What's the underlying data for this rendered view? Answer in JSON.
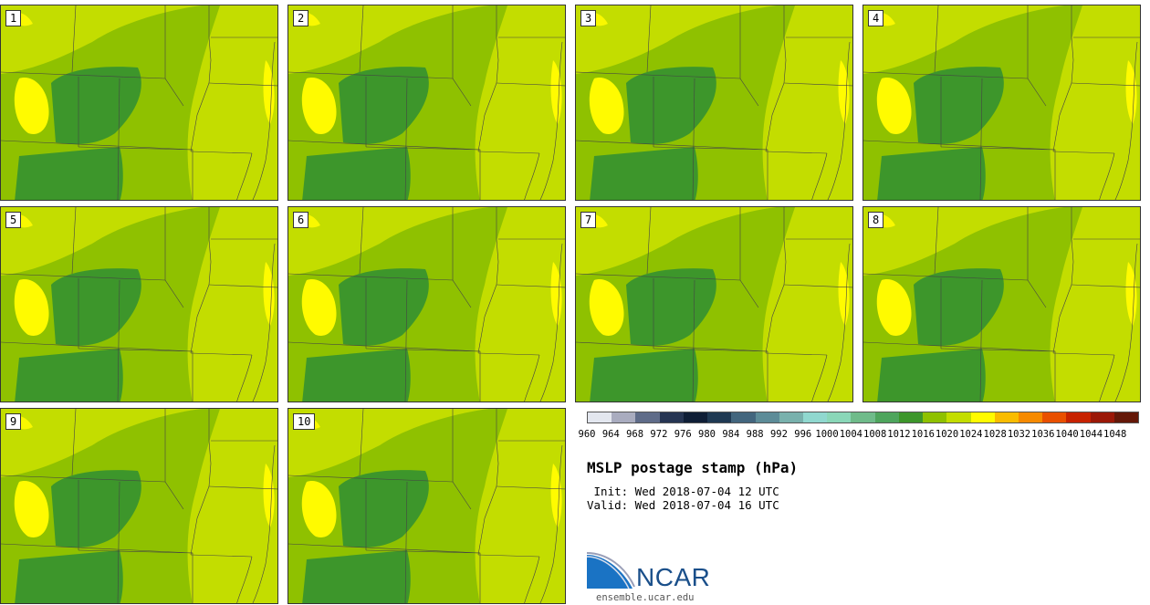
{
  "panels": [
    {
      "label": "1"
    },
    {
      "label": "2"
    },
    {
      "label": "3"
    },
    {
      "label": "4"
    },
    {
      "label": "5"
    },
    {
      "label": "6"
    },
    {
      "label": "7"
    },
    {
      "label": "8"
    },
    {
      "label": "9"
    },
    {
      "label": "10"
    }
  ],
  "colorbar": {
    "colors": [
      "#e3e7ef",
      "#a9acbf",
      "#5f6c89",
      "#263553",
      "#0f1e36",
      "#1f3953",
      "#43667e",
      "#5d8c98",
      "#79b1ad",
      "#90d8cf",
      "#8ad7b8",
      "#6fbb8a",
      "#4ea55d",
      "#3d962b",
      "#8fc100",
      "#c3dd00",
      "#fffb00",
      "#f9bc00",
      "#f68a00",
      "#e95000",
      "#c72200",
      "#9b1807",
      "#641808"
    ],
    "ticks": [
      "960",
      "964",
      "968",
      "972",
      "976",
      "980",
      "984",
      "988",
      "992",
      "996",
      "1000",
      "1004",
      "1008",
      "1012",
      "1016",
      "1020",
      "1024",
      "1028",
      "1032",
      "1036",
      "1040",
      "1044",
      "1048"
    ]
  },
  "title": "MSLP postage stamp (hPa)",
  "init": " Init: Wed 2018-07-04 12 UTC",
  "valid": "Valid: Wed 2018-07-04 16 UTC",
  "logo": {
    "text": "NCAR",
    "site": "ensemble.ucar.edu"
  },
  "map_colors": {
    "light": "#c3dd00",
    "mid": "#8fc100",
    "dark": "#3d962b",
    "high": "#fffb00"
  }
}
